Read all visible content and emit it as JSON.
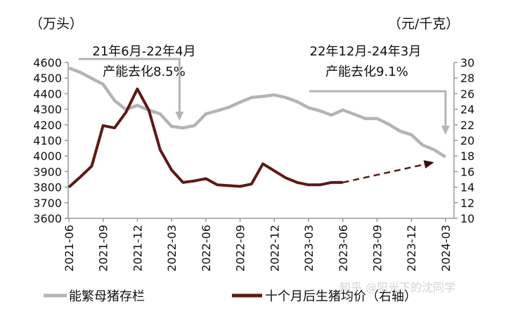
{
  "chart_data": {
    "type": "line",
    "left_unit_label": "（万头）",
    "right_unit_label": "（元/千克）",
    "left_ylim": [
      3600,
      4600
    ],
    "left_yticks": [
      3600,
      3700,
      3800,
      3900,
      4000,
      4100,
      4200,
      4300,
      4400,
      4500,
      4600
    ],
    "right_ylim": [
      10,
      30
    ],
    "right_yticks": [
      10,
      12,
      14,
      16,
      18,
      20,
      22,
      24,
      26,
      28,
      30
    ],
    "x_tick_labels": [
      "2021-06",
      "2021-09",
      "2021-12",
      "2022-03",
      "2022-06",
      "2022-09",
      "2022-12",
      "2023-03",
      "2023-06",
      "2023-09",
      "2023-12",
      "2024-03"
    ],
    "grid": false,
    "legend_position": "bottom",
    "series": [
      {
        "name": "能繁母猪存栏",
        "axis": "left",
        "color": "#b4b4b4",
        "start": "2021-06",
        "values": [
          4565,
          4537,
          4498,
          4460,
          4356,
          4298,
          4325,
          4294,
          4270,
          4190,
          4180,
          4195,
          4270,
          4290,
          4312,
          4345,
          4375,
          4383,
          4392,
          4375,
          4348,
          4310,
          4290,
          4262,
          4295,
          4268,
          4240,
          4240,
          4205,
          4160,
          4137,
          4070,
          4040,
          3994
        ]
      },
      {
        "name": "十个月后生猪均价（右轴）",
        "axis": "right",
        "color": "#5a1a16",
        "start": "2021-06",
        "values": [
          14.0,
          15.3,
          16.7,
          21.9,
          21.6,
          23.6,
          26.6,
          23.9,
          18.8,
          16.2,
          14.6,
          14.8,
          15.1,
          14.3,
          14.2,
          14.1,
          14.4,
          17.0,
          16.1,
          15.2,
          14.6,
          14.3,
          14.3,
          14.6,
          14.6
        ]
      }
    ],
    "annotations": [
      {
        "line1": "21年6月-22年4月",
        "line2": "产能去化8.5%",
        "from": "2021-06",
        "to": "2022-04"
      },
      {
        "line1": "22年12月-24年3月",
        "line2": "产能去化9.1%",
        "from": "2022-12",
        "to": "2024-03"
      }
    ],
    "trend_arrow": {
      "from": [
        "2023-06",
        14.6
      ],
      "to": [
        "2024-02",
        17.2
      ],
      "style": "dashed"
    },
    "watermark": "知乎 @阳光下的沈同学"
  }
}
